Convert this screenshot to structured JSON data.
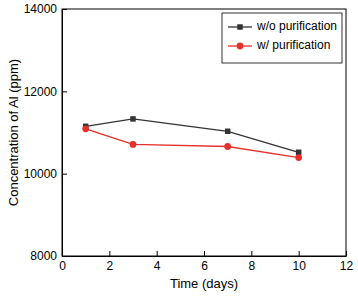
{
  "chart_data": {
    "type": "line",
    "x_label": "Time (days)",
    "y_label": "Concentration of Al (ppm)",
    "x": [
      1,
      3,
      7,
      10
    ],
    "series": [
      {
        "name": "w/o purification",
        "color": "#333333",
        "marker": "square",
        "line_style": "solid",
        "values": [
          11150,
          11330,
          11030,
          10520
        ]
      },
      {
        "name": "w/ purification",
        "color": "#e8302a",
        "marker": "circle",
        "line_style": "solid",
        "values": [
          11090,
          10710,
          10660,
          10390
        ]
      }
    ],
    "xlim": [
      0,
      12
    ],
    "xticks": [
      0,
      2,
      4,
      6,
      8,
      10,
      12
    ],
    "ylim": [
      8000,
      14000
    ],
    "yticks": [
      8000,
      10000,
      12000,
      14000
    ],
    "grid": false,
    "legend": "upper right"
  }
}
